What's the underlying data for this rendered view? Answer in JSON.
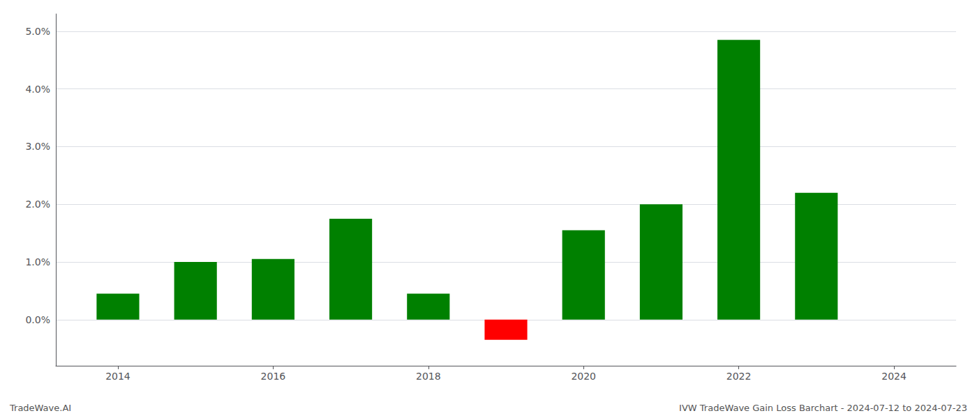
{
  "chart_data": {
    "type": "bar",
    "x": [
      2014,
      2015,
      2016,
      2017,
      2018,
      2019,
      2020,
      2021,
      2022,
      2023
    ],
    "values": [
      0.0045,
      0.01,
      0.0105,
      0.0175,
      0.0045,
      -0.0035,
      0.0155,
      0.02,
      0.0485,
      0.022
    ],
    "colors": [
      "#008000",
      "#008000",
      "#008000",
      "#008000",
      "#008000",
      "#ff0000",
      "#008000",
      "#008000",
      "#008000",
      "#008000"
    ],
    "xlim": [
      2013.2,
      2024.8
    ],
    "xticks": [
      2014,
      2016,
      2018,
      2020,
      2022,
      2024
    ],
    "ylim": [
      -0.008,
      0.053
    ],
    "yticks": [
      {
        "value": 0.0,
        "label": "0.0%"
      },
      {
        "value": 0.01,
        "label": "1.0%"
      },
      {
        "value": 0.02,
        "label": "2.0%"
      },
      {
        "value": 0.03,
        "label": "3.0%"
      },
      {
        "value": 0.04,
        "label": "4.0%"
      },
      {
        "value": 0.05,
        "label": "5.0%"
      }
    ],
    "grid": true,
    "annotations": [
      "TradeWave.AI",
      "IVW TradeWave Gain Loss Barchart - 2024-07-12 to 2024-07-23"
    ]
  }
}
